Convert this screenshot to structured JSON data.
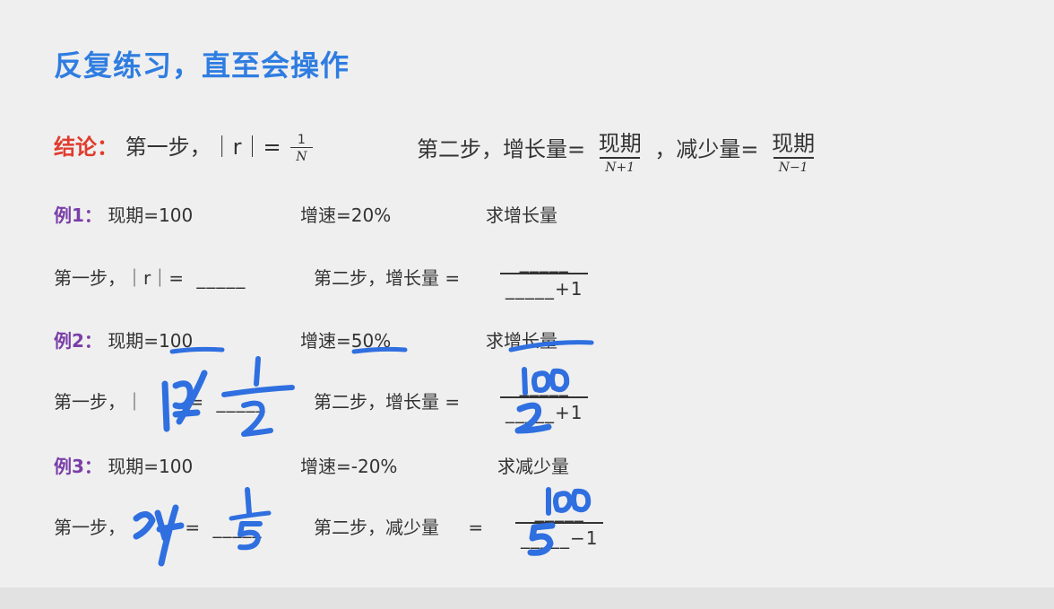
{
  "title": "反复练习，直至会操作",
  "conclusion": {
    "label": "结论：",
    "step1_text": "第一步，｜r｜=",
    "step1_num": "1",
    "step1_den": "N",
    "step2_text": "第二步，增长量=",
    "step2_num": "现期",
    "step2_den": "N+1",
    "sep": "，减少量=",
    "step2b_num": "现期",
    "step2b_den": "N−1"
  },
  "example1": {
    "label": "例1：",
    "current": "现期=100",
    "rate": "增速=20%",
    "ask": "求增长量",
    "step1": "第一步，｜r｜=",
    "blank": "_____",
    "step2": "第二步，增长量 =",
    "num_blank": "_____",
    "den_blank": "_____+1"
  },
  "example2": {
    "label": "例2：",
    "current": "现期=100",
    "rate": "增速=50%",
    "ask": "求增长量",
    "step1": "第一步，｜",
    "eq": "=",
    "blank": "_____",
    "step2": "第二步，增长量 =",
    "num_blank": "_____",
    "den_blank": "_____+1",
    "hw_step1": "1/2",
    "hw_num": "100",
    "hw_den": "2"
  },
  "example3": {
    "label": "例3：",
    "current": "现期=100",
    "rate": "增速=-20%",
    "ask": "求减少量",
    "step1": "第一步，",
    "eq": "=",
    "blank": "_____",
    "step2": "第二步，减少量",
    "eq2": "=",
    "num_blank": "_____",
    "den_blank": "_____−1",
    "hw_step1": "1/5",
    "hw_num": "100",
    "hw_den": "5"
  },
  "colors": {
    "title": "#2f7de1",
    "conclusion": "#e03c2e",
    "example": "#7a3ea8",
    "ink": "#2f6fe0"
  }
}
